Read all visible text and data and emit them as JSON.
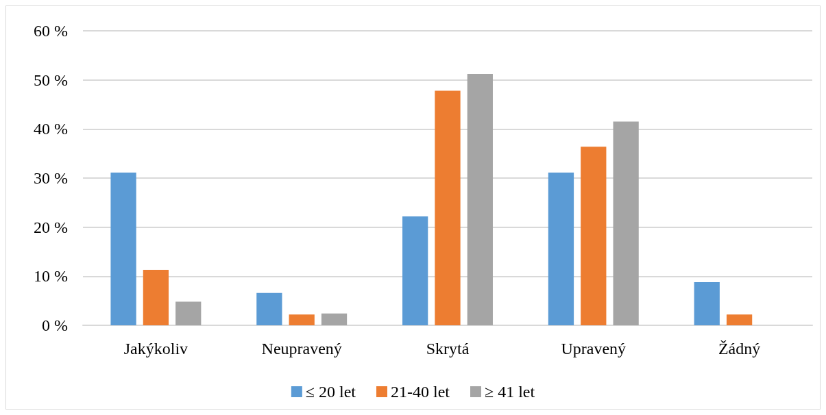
{
  "chart_data": {
    "type": "bar",
    "categories": [
      "Jakýkoliv",
      "Neupravený",
      "Skrytá",
      "Upravený",
      "Žádný"
    ],
    "series": [
      {
        "name": "≤ 20 let",
        "color": "#5b9bd5",
        "values": [
          31.1,
          6.6,
          22.2,
          31.1,
          8.8
        ]
      },
      {
        "name": "21-40 let",
        "color": "#ed7d31",
        "values": [
          11.3,
          2.2,
          47.8,
          36.4,
          2.2
        ]
      },
      {
        "name": "≥ 41 let",
        "color": "#a5a5a5",
        "values": [
          4.8,
          2.4,
          51.2,
          41.5,
          0
        ]
      }
    ],
    "ylim": [
      0,
      60
    ],
    "yticks": [
      {
        "value": 0,
        "label": "0 %"
      },
      {
        "value": 10,
        "label": "10 %"
      },
      {
        "value": 20,
        "label": "20 %"
      },
      {
        "value": 30,
        "label": "30 %"
      },
      {
        "value": 40,
        "label": "40 %"
      },
      {
        "value": 50,
        "label": "50 %"
      },
      {
        "value": 60,
        "label": "60 %"
      }
    ],
    "grid": "y",
    "legend": "bottom"
  }
}
